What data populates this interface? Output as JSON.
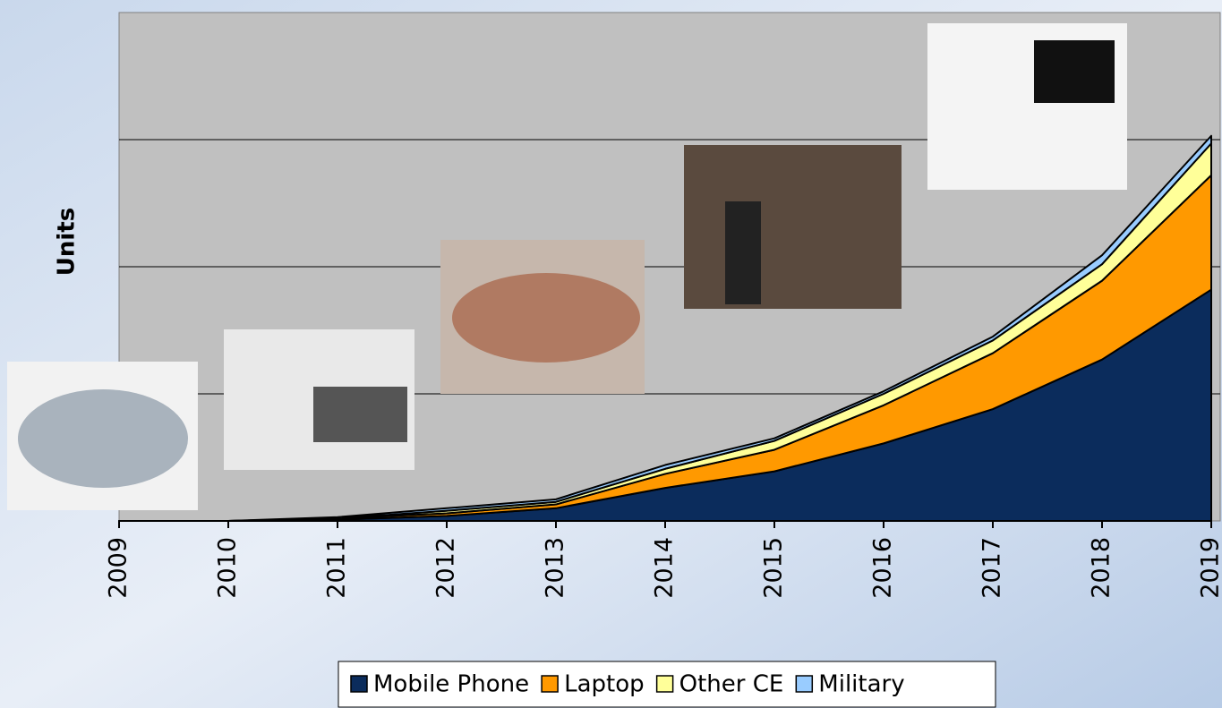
{
  "chart_data": {
    "type": "stacked-area",
    "y_label": "Units",
    "x": [
      "2009",
      "2010",
      "2011",
      "2012",
      "2013",
      "2014",
      "2015",
      "2016",
      "2017",
      "2018",
      "2019"
    ],
    "series": [
      {
        "name": "Mobile Phone",
        "color": "#0b2c5c",
        "values": [
          0,
          0,
          0.01,
          0.04,
          0.1,
          0.26,
          0.39,
          0.61,
          0.88,
          1.27,
          1.82
        ]
      },
      {
        "name": "Laptop",
        "color": "#ff9900",
        "values": [
          0,
          0,
          0.01,
          0.02,
          0.03,
          0.11,
          0.17,
          0.3,
          0.44,
          0.62,
          0.9
        ]
      },
      {
        "name": "Other CE",
        "color": "#ffff99",
        "values": [
          0,
          0,
          0,
          0.02,
          0.02,
          0.04,
          0.07,
          0.09,
          0.1,
          0.13,
          0.25
        ]
      },
      {
        "name": "Military",
        "color": "#99ccff",
        "values": [
          0,
          0,
          0.01,
          0.02,
          0.02,
          0.03,
          0.02,
          0.02,
          0.03,
          0.07,
          0.06
        ]
      }
    ],
    "ylim": [
      0,
      4
    ],
    "yticks": [
      1,
      2,
      3
    ],
    "grid": true
  }
}
